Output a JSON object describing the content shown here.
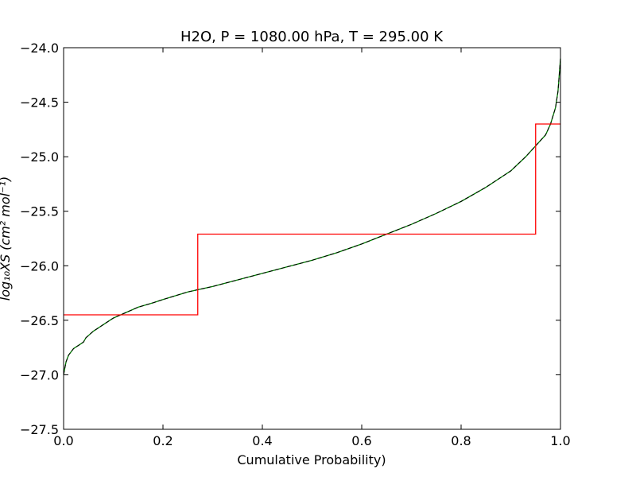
{
  "chart_data": {
    "type": "line",
    "title": "H2O, P = 1080.00 hPa, T = 295.00 K",
    "xlabel": "Cumulative Probability)",
    "ylabel": "log₁₀XS (cm² mol⁻¹)",
    "xlim": [
      0.0,
      1.0
    ],
    "ylim": [
      -27.5,
      -24.0
    ],
    "xticks": [
      0.0,
      0.2,
      0.4,
      0.6,
      0.8,
      1.0
    ],
    "xtick_labels": [
      "0.0",
      "0.2",
      "0.4",
      "0.6",
      "0.8",
      "1.0"
    ],
    "yticks": [
      -27.5,
      -27.0,
      -26.5,
      -26.0,
      -25.5,
      -25.0,
      -24.5,
      -24.0
    ],
    "ytick_labels": [
      "−27.5",
      "−27.0",
      "−26.5",
      "−26.0",
      "−25.5",
      "−25.0",
      "−24.5",
      "−24.0"
    ],
    "grid": false,
    "series": [
      {
        "color": "#008000",
        "dashed_overlay_color": "#000000",
        "x": [
          0.0,
          0.002,
          0.005,
          0.01,
          0.015,
          0.02,
          0.03,
          0.04,
          0.045,
          0.05,
          0.06,
          0.08,
          0.1,
          0.12,
          0.15,
          0.18,
          0.2,
          0.25,
          0.3,
          0.35,
          0.4,
          0.45,
          0.5,
          0.55,
          0.6,
          0.65,
          0.7,
          0.75,
          0.8,
          0.85,
          0.9,
          0.93,
          0.95,
          0.97,
          0.98,
          0.99,
          0.995,
          1.0
        ],
        "y": [
          -27.0,
          -26.95,
          -26.88,
          -26.82,
          -26.79,
          -26.76,
          -26.73,
          -26.7,
          -26.66,
          -26.64,
          -26.6,
          -26.54,
          -26.48,
          -26.44,
          -26.38,
          -26.34,
          -26.31,
          -26.24,
          -26.19,
          -26.13,
          -26.07,
          -26.01,
          -25.95,
          -25.88,
          -25.8,
          -25.71,
          -25.62,
          -25.52,
          -25.41,
          -25.28,
          -25.13,
          -25.0,
          -24.9,
          -24.8,
          -24.7,
          -24.55,
          -24.4,
          -24.1
        ]
      },
      {
        "color": "#ff0000",
        "step": true,
        "x": [
          0.0,
          0.27,
          0.27,
          0.95,
          0.95,
          1.0
        ],
        "y": [
          -26.45,
          -26.45,
          -25.71,
          -25.71,
          -24.7,
          -24.7
        ]
      }
    ]
  }
}
